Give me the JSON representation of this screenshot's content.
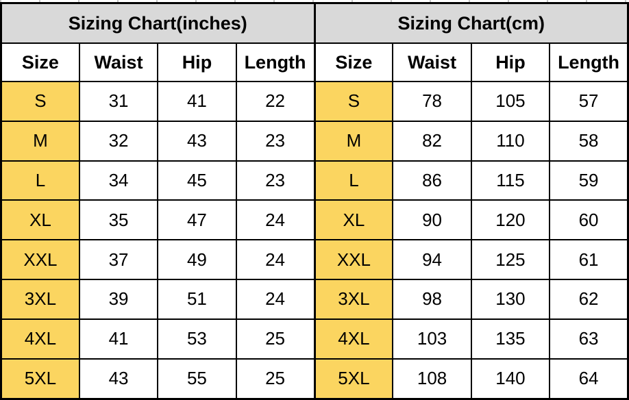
{
  "colors": {
    "title_bg": "#d9d9d9",
    "size_col_bg": "#fbd560",
    "cell_bg": "#ffffff",
    "border": "#000000",
    "text": "#000000"
  },
  "chart_data": [
    {
      "type": "table",
      "title": "Sizing Chart(inches)",
      "columns": [
        "Size",
        "Waist",
        "Hip",
        "Length"
      ],
      "rows": [
        [
          "S",
          31,
          41,
          22
        ],
        [
          "M",
          32,
          43,
          23
        ],
        [
          "L",
          34,
          45,
          23
        ],
        [
          "XL",
          35,
          47,
          24
        ],
        [
          "XXL",
          37,
          49,
          24
        ],
        [
          "3XL",
          39,
          51,
          24
        ],
        [
          "4XL",
          41,
          53,
          25
        ],
        [
          "5XL",
          43,
          55,
          25
        ]
      ]
    },
    {
      "type": "table",
      "title": "Sizing Chart(cm)",
      "columns": [
        "Size",
        "Waist",
        "Hip",
        "Length"
      ],
      "rows": [
        [
          "S",
          78,
          105,
          57
        ],
        [
          "M",
          82,
          110,
          58
        ],
        [
          "L",
          86,
          115,
          59
        ],
        [
          "XL",
          90,
          120,
          60
        ],
        [
          "XXL",
          94,
          125,
          61
        ],
        [
          "3XL",
          98,
          130,
          62
        ],
        [
          "4XL",
          103,
          135,
          63
        ],
        [
          "5XL",
          108,
          140,
          64
        ]
      ]
    }
  ]
}
